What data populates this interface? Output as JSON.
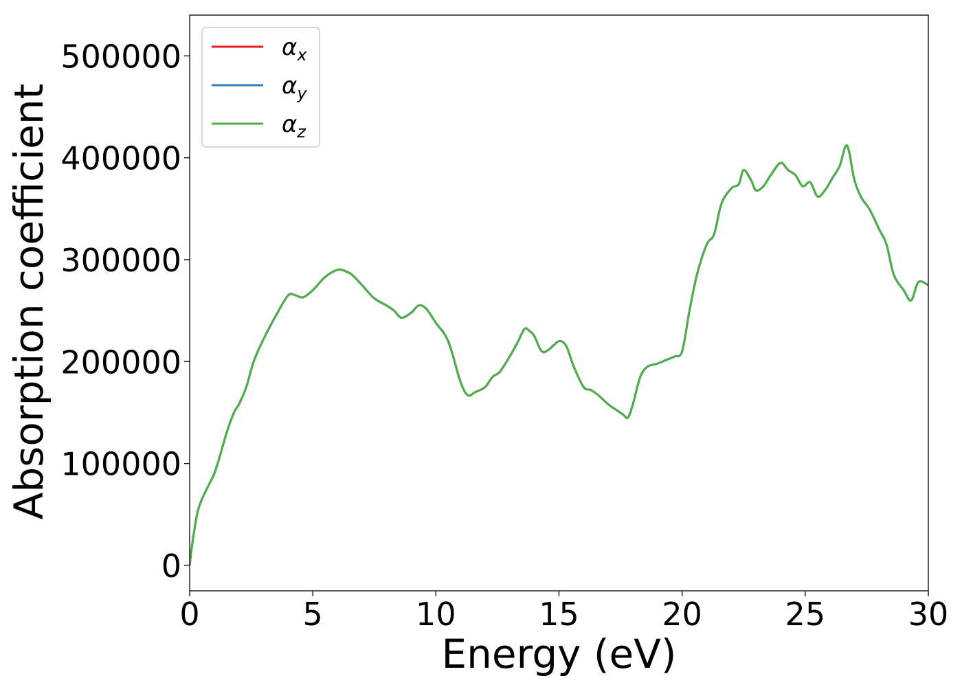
{
  "chart_data": {
    "type": "line",
    "title": "",
    "xlabel": "Energy (eV)",
    "ylabel": "Absorption coefficient",
    "xlim": [
      0,
      30
    ],
    "ylim": [
      -25000,
      540000
    ],
    "xticks": [
      0,
      5,
      10,
      15,
      20,
      25,
      30
    ],
    "yticks": [
      0,
      100000,
      200000,
      300000,
      400000,
      500000
    ],
    "grid": false,
    "legend_position": "top-left",
    "series": [
      {
        "name": "αx",
        "sym": "α",
        "sub": "x",
        "color": "#e41a1c",
        "x": [
          0,
          0.1,
          0.3,
          0.5,
          0.8,
          1.0,
          1.2,
          1.5,
          1.8,
          2.0,
          2.3,
          2.6,
          3.0,
          3.5,
          4.0,
          4.3,
          4.6,
          5.0,
          5.5,
          6.0,
          6.3,
          6.6,
          7.0,
          7.5,
          8.0,
          8.3,
          8.6,
          9.0,
          9.3,
          9.6,
          10.0,
          10.5,
          11.0,
          11.3,
          11.6,
          12.0,
          12.3,
          12.6,
          13.0,
          13.3,
          13.6,
          13.8,
          14.0,
          14.3,
          14.6,
          15.0,
          15.3,
          15.6,
          16.0,
          16.3,
          16.6,
          17.0,
          17.3,
          17.6,
          17.8,
          18.0,
          18.3,
          18.6,
          19.0,
          19.4,
          19.7,
          20.0,
          20.3,
          20.6,
          21.0,
          21.3,
          21.6,
          22.0,
          22.3,
          22.5,
          22.8,
          23.0,
          23.3,
          23.6,
          24.0,
          24.3,
          24.6,
          24.9,
          25.2,
          25.5,
          25.8,
          26.1,
          26.4,
          26.7,
          27.0,
          27.3,
          27.6,
          28.0,
          28.3,
          28.6,
          29.0,
          29.3,
          29.6,
          30.0
        ],
        "y": [
          0,
          20000,
          50000,
          65000,
          80000,
          90000,
          105000,
          130000,
          150000,
          158000,
          175000,
          200000,
          222000,
          245000,
          265000,
          265000,
          263000,
          270000,
          283000,
          290000,
          289000,
          285000,
          275000,
          262000,
          255000,
          250000,
          243000,
          248000,
          255000,
          252000,
          238000,
          220000,
          180000,
          167000,
          170000,
          175000,
          185000,
          190000,
          205000,
          218000,
          232000,
          230000,
          225000,
          210000,
          212000,
          220000,
          215000,
          195000,
          175000,
          172000,
          167000,
          158000,
          153000,
          148000,
          145000,
          158000,
          185000,
          195000,
          198000,
          202000,
          205000,
          210000,
          250000,
          285000,
          315000,
          325000,
          355000,
          370000,
          374000,
          388000,
          378000,
          368000,
          372000,
          383000,
          395000,
          388000,
          383000,
          372000,
          376000,
          362000,
          368000,
          380000,
          392000,
          412000,
          378000,
          360000,
          350000,
          330000,
          315000,
          285000,
          270000,
          260000,
          278000,
          275000
        ]
      },
      {
        "name": "αy",
        "sym": "α",
        "sub": "y",
        "color": "#377eb8",
        "x": [
          0,
          0.1,
          0.3,
          0.5,
          0.8,
          1.0,
          1.2,
          1.5,
          1.8,
          2.0,
          2.3,
          2.6,
          3.0,
          3.5,
          4.0,
          4.3,
          4.6,
          5.0,
          5.5,
          6.0,
          6.3,
          6.6,
          7.0,
          7.5,
          8.0,
          8.3,
          8.6,
          9.0,
          9.3,
          9.6,
          10.0,
          10.5,
          11.0,
          11.3,
          11.6,
          12.0,
          12.3,
          12.6,
          13.0,
          13.3,
          13.6,
          13.8,
          14.0,
          14.3,
          14.6,
          15.0,
          15.3,
          15.6,
          16.0,
          16.3,
          16.6,
          17.0,
          17.3,
          17.6,
          17.8,
          18.0,
          18.3,
          18.6,
          19.0,
          19.4,
          19.7,
          20.0,
          20.3,
          20.6,
          21.0,
          21.3,
          21.6,
          22.0,
          22.3,
          22.5,
          22.8,
          23.0,
          23.3,
          23.6,
          24.0,
          24.3,
          24.6,
          24.9,
          25.2,
          25.5,
          25.8,
          26.1,
          26.4,
          26.7,
          27.0,
          27.3,
          27.6,
          28.0,
          28.3,
          28.6,
          29.0,
          29.3,
          29.6,
          30.0
        ],
        "y": [
          0,
          20000,
          50000,
          65000,
          80000,
          90000,
          105000,
          130000,
          150000,
          158000,
          175000,
          200000,
          222000,
          245000,
          265000,
          265000,
          263000,
          270000,
          283000,
          290000,
          289000,
          285000,
          275000,
          262000,
          255000,
          250000,
          243000,
          248000,
          255000,
          252000,
          238000,
          220000,
          180000,
          167000,
          170000,
          175000,
          185000,
          190000,
          205000,
          218000,
          232000,
          230000,
          225000,
          210000,
          212000,
          220000,
          215000,
          195000,
          175000,
          172000,
          167000,
          158000,
          153000,
          148000,
          145000,
          158000,
          185000,
          195000,
          198000,
          202000,
          205000,
          210000,
          250000,
          285000,
          315000,
          325000,
          355000,
          370000,
          374000,
          388000,
          378000,
          368000,
          372000,
          383000,
          395000,
          388000,
          383000,
          372000,
          376000,
          362000,
          368000,
          380000,
          392000,
          412000,
          378000,
          360000,
          350000,
          330000,
          315000,
          285000,
          270000,
          260000,
          278000,
          275000
        ]
      },
      {
        "name": "αz",
        "sym": "α",
        "sub": "z",
        "color": "#4daf4a",
        "x": [
          0,
          0.1,
          0.3,
          0.5,
          0.8,
          1.0,
          1.2,
          1.5,
          1.8,
          2.0,
          2.3,
          2.6,
          3.0,
          3.5,
          4.0,
          4.3,
          4.6,
          5.0,
          5.5,
          6.0,
          6.3,
          6.6,
          7.0,
          7.5,
          8.0,
          8.3,
          8.6,
          9.0,
          9.3,
          9.6,
          10.0,
          10.5,
          11.0,
          11.3,
          11.6,
          12.0,
          12.3,
          12.6,
          13.0,
          13.3,
          13.6,
          13.8,
          14.0,
          14.3,
          14.6,
          15.0,
          15.3,
          15.6,
          16.0,
          16.3,
          16.6,
          17.0,
          17.3,
          17.6,
          17.8,
          18.0,
          18.3,
          18.6,
          19.0,
          19.4,
          19.7,
          20.0,
          20.3,
          20.6,
          21.0,
          21.3,
          21.6,
          22.0,
          22.3,
          22.5,
          22.8,
          23.0,
          23.3,
          23.6,
          24.0,
          24.3,
          24.6,
          24.9,
          25.2,
          25.5,
          25.8,
          26.1,
          26.4,
          26.7,
          27.0,
          27.3,
          27.6,
          28.0,
          28.3,
          28.6,
          29.0,
          29.3,
          29.6,
          30.0
        ],
        "y": [
          0,
          20000,
          50000,
          65000,
          80000,
          90000,
          105000,
          130000,
          150000,
          158000,
          175000,
          200000,
          222000,
          245000,
          265000,
          265000,
          263000,
          270000,
          283000,
          290000,
          289000,
          285000,
          275000,
          262000,
          255000,
          250000,
          243000,
          248000,
          255000,
          252000,
          238000,
          220000,
          180000,
          167000,
          170000,
          175000,
          185000,
          190000,
          205000,
          218000,
          232000,
          230000,
          225000,
          210000,
          212000,
          220000,
          215000,
          195000,
          175000,
          172000,
          167000,
          158000,
          153000,
          148000,
          145000,
          158000,
          185000,
          195000,
          198000,
          202000,
          205000,
          210000,
          250000,
          285000,
          315000,
          325000,
          355000,
          370000,
          374000,
          388000,
          378000,
          368000,
          372000,
          383000,
          395000,
          388000,
          383000,
          372000,
          376000,
          362000,
          368000,
          380000,
          392000,
          412000,
          378000,
          360000,
          350000,
          330000,
          315000,
          285000,
          270000,
          260000,
          278000,
          275000
        ]
      }
    ]
  }
}
